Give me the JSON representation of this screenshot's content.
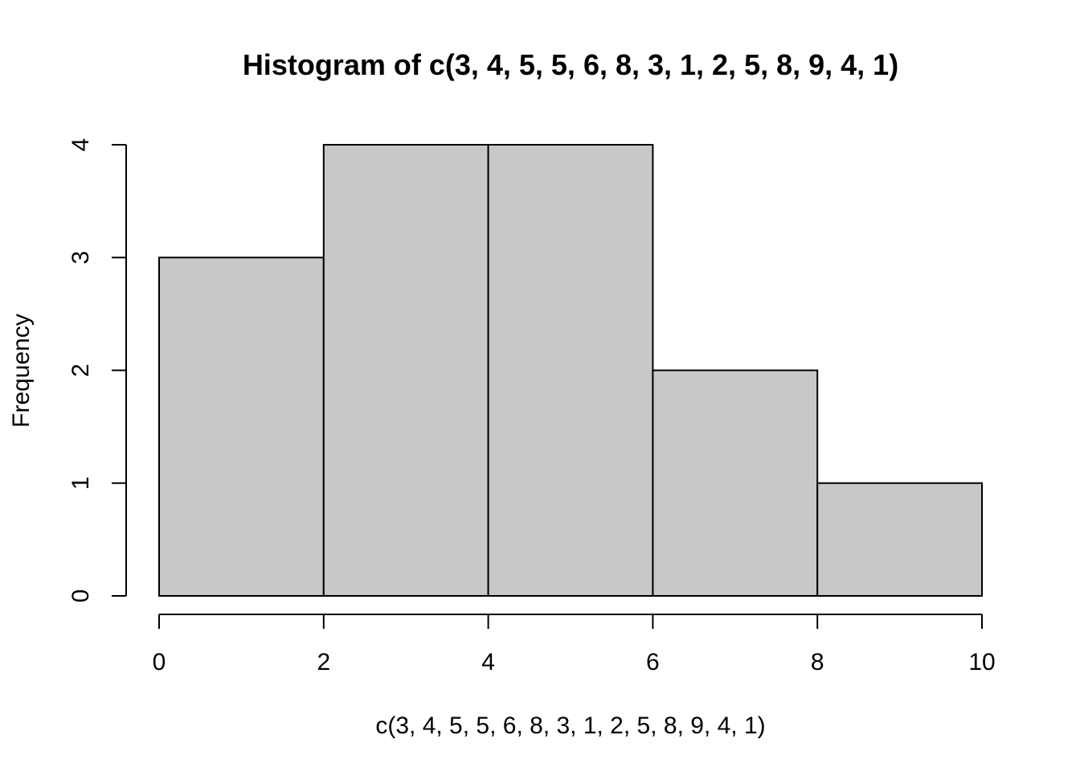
{
  "chart_data": {
    "type": "bar",
    "title": "Histogram of c(3, 4, 5, 5, 6, 8, 3, 1, 2, 5, 8, 9, 4, 1)",
    "xlabel": "c(3, 4, 5, 5, 6, 8, 3, 1, 2, 5, 8, 9, 4, 1)",
    "ylabel": "Frequency",
    "bins": [
      {
        "from": 0,
        "to": 2,
        "count": 3
      },
      {
        "from": 2,
        "to": 4,
        "count": 4
      },
      {
        "from": 4,
        "to": 6,
        "count": 4
      },
      {
        "from": 6,
        "to": 8,
        "count": 2
      },
      {
        "from": 8,
        "to": 10,
        "count": 1
      }
    ],
    "xlim": [
      0,
      10
    ],
    "ylim": [
      0,
      4
    ],
    "x_ticks": [
      "0",
      "2",
      "4",
      "6",
      "8",
      "10"
    ],
    "y_ticks": [
      "0",
      "1",
      "2",
      "3",
      "4"
    ],
    "grid": false,
    "bar_color": "#c8c8c8",
    "edge_color": "#000000"
  }
}
